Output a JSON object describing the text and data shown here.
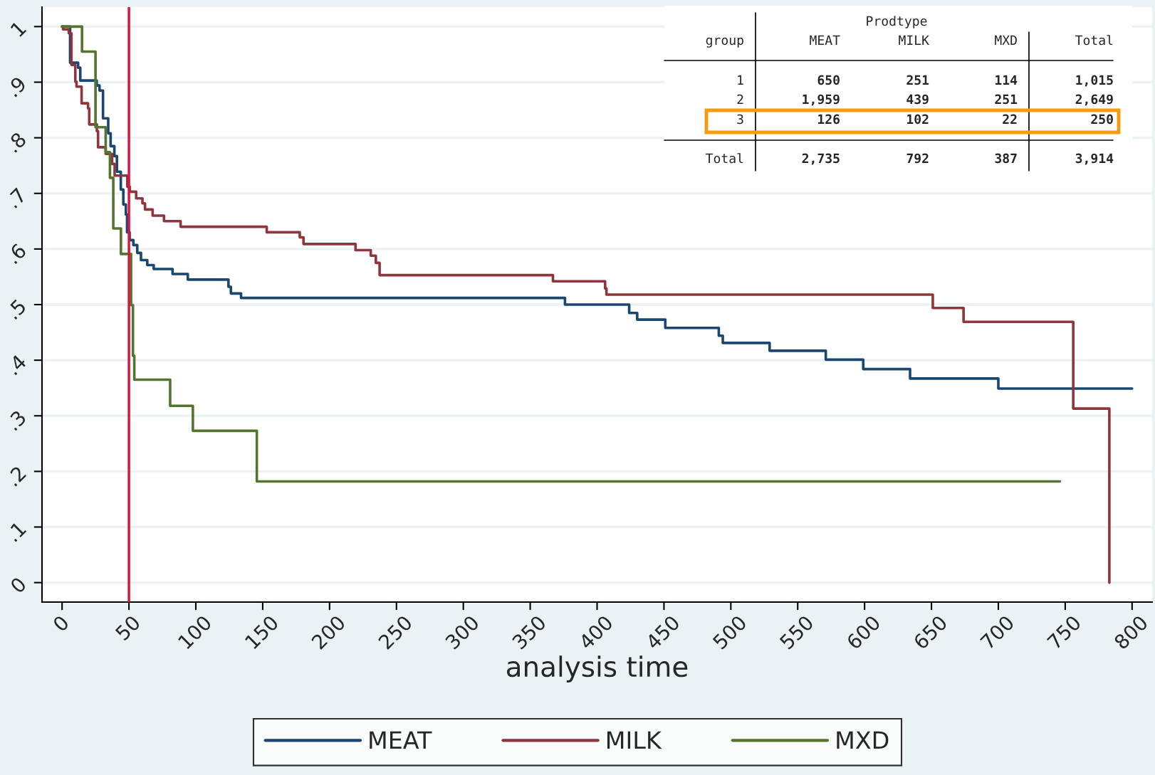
{
  "chart_data": {
    "type": "step",
    "xlabel": "analysis time",
    "xlim": [
      -15,
      815
    ],
    "ylim": [
      -0.035,
      1.035
    ],
    "xticks": [
      0,
      50,
      100,
      150,
      200,
      250,
      300,
      350,
      400,
      450,
      500,
      550,
      600,
      650,
      700,
      750,
      800
    ],
    "yticks": [
      {
        "value": 0,
        "label": "0"
      },
      {
        "value": 0.1,
        "label": ".1"
      },
      {
        "value": 0.2,
        "label": ".2"
      },
      {
        "value": 0.3,
        "label": ".3"
      },
      {
        "value": 0.4,
        "label": ".4"
      },
      {
        "value": 0.5,
        "label": ".5"
      },
      {
        "value": 0.6,
        "label": ".6"
      },
      {
        "value": 0.7,
        "label": ".7"
      },
      {
        "value": 0.8,
        "label": ".8"
      },
      {
        "value": 0.9,
        "label": ".9"
      },
      {
        "value": 1,
        "label": "1"
      }
    ],
    "grid": "y",
    "legend": "bottom",
    "series": [
      {
        "name": "MEAT",
        "color": "#1a476f",
        "x": [
          0,
          6,
          12,
          13.6,
          25.9,
          28,
          30.6,
          34.5,
          36.3,
          39.1,
          41,
          43.9,
          45.8,
          47.7,
          48.6,
          50.5,
          53.3,
          56.2,
          59,
          63.7,
          68.5,
          82.6,
          94,
          124.4,
          126.2,
          133.8,
          376,
          424,
          430,
          451,
          491,
          494,
          529,
          571,
          599,
          634,
          700,
          800
        ],
        "values": [
          1,
          0.935,
          0.926,
          0.903,
          0.894,
          0.885,
          0.835,
          0.808,
          0.785,
          0.767,
          0.739,
          0.707,
          0.68,
          0.662,
          0.63,
          0.616,
          0.607,
          0.593,
          0.58,
          0.571,
          0.564,
          0.555,
          0.545,
          0.532,
          0.52,
          0.512,
          0.5,
          0.485,
          0.473,
          0.458,
          0.444,
          0.431,
          0.417,
          0.401,
          0.384,
          0.367,
          0.349,
          0.349
        ]
      },
      {
        "name": "MILK",
        "color": "#90353b",
        "x": [
          0,
          0.7,
          5,
          7,
          9.9,
          10.8,
          14.6,
          19.4,
          20.3,
          26,
          26.9,
          32.6,
          37.4,
          39.3,
          48.8,
          50.6,
          55.4,
          60.1,
          62,
          67.7,
          76.2,
          88.6,
          153,
          177.7,
          180.5,
          219.4,
          230.8,
          234.6,
          237.4,
          367,
          406,
          407,
          651,
          674,
          756,
          783
        ],
        "values": [
          1,
          0.995,
          0.988,
          0.931,
          0.901,
          0.892,
          0.862,
          0.853,
          0.824,
          0.812,
          0.783,
          0.771,
          0.753,
          0.732,
          0.712,
          0.703,
          0.691,
          0.682,
          0.671,
          0.66,
          0.65,
          0.64,
          0.63,
          0.621,
          0.609,
          0.598,
          0.588,
          0.575,
          0.553,
          0.542,
          0.529,
          0.518,
          0.494,
          0.469,
          0.313,
          0
        ]
      },
      {
        "name": "MXD",
        "color": "#55752f",
        "x": [
          0,
          14.9,
          25,
          32.6,
          35.8,
          38.3,
          44,
          51.6,
          53,
          54,
          80.8,
          97.8,
          145.6,
          746
        ],
        "values": [
          1,
          0.955,
          0.819,
          0.774,
          0.728,
          0.637,
          0.591,
          0.499,
          0.408,
          0.365,
          0.318,
          0.273,
          0.182,
          0.182
        ]
      }
    ],
    "ref_lines": [
      {
        "axis": "x",
        "value": 50,
        "color": "#dc143c"
      }
    ],
    "annotations": [
      "Prodtype",
      "group",
      "MEAT",
      "MILK",
      "MXD",
      "Total",
      "1",
      "650",
      "251",
      "114",
      "1,015",
      "2",
      "1,959",
      "439",
      "251",
      "2,649",
      "3",
      "126",
      "102",
      "22",
      "250",
      "Total",
      "2,735",
      "792",
      "387",
      "3,914"
    ]
  }
}
